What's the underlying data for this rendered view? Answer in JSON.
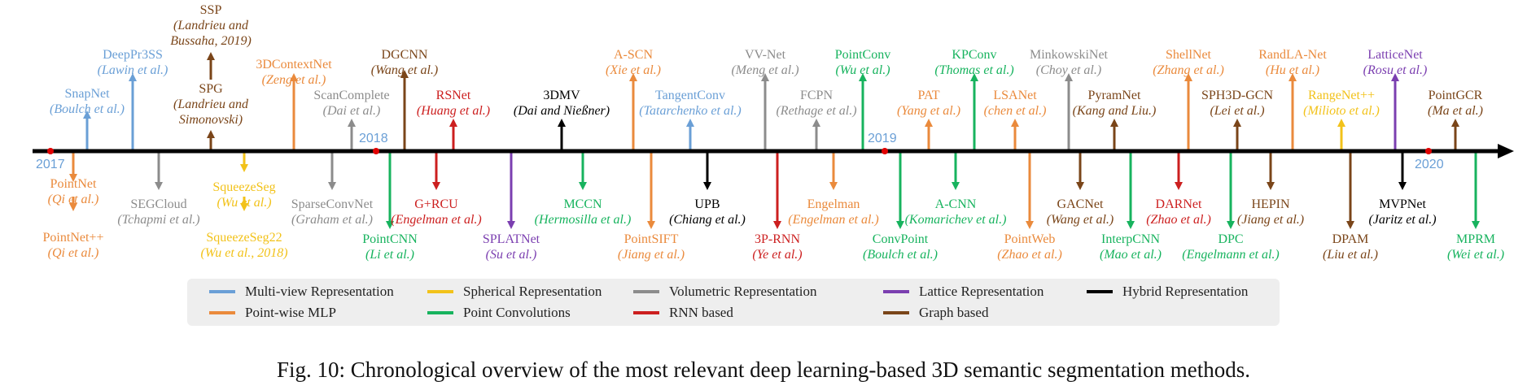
{
  "caption": "Fig. 10: Chronological overview of the most relevant deep learning-based 3D semantic segmentation methods.",
  "colors": {
    "multiview": "#6a9fd6",
    "spherical": "#f2c21a",
    "volumetric": "#8c8c8c",
    "lattice": "#7b3fb0",
    "hybrid": "#000000",
    "pointwise": "#ea8a3c",
    "pointconv": "#17b35e",
    "rnn": "#cc1f1f",
    "graph": "#7a4519",
    "axis": "#000000",
    "marker": "#e00000"
  },
  "years": [
    "2017",
    "2018",
    "2019",
    "2020"
  ],
  "legend": [
    {
      "cat": "multiview",
      "label": "Multi-view Representation"
    },
    {
      "cat": "spherical",
      "label": "Spherical Representation"
    },
    {
      "cat": "volumetric",
      "label": "Volumetric Representation"
    },
    {
      "cat": "lattice",
      "label": "Lattice Representation"
    },
    {
      "cat": "hybrid",
      "label": "Hybrid Representation"
    },
    {
      "cat": "pointwise",
      "label": "Point-wise MLP"
    },
    {
      "cat": "pointconv",
      "label": "Point Convolutions"
    },
    {
      "cat": "rnn",
      "label": "RNN based"
    },
    {
      "cat": "graph",
      "label": "Graph based"
    }
  ],
  "methods": [
    {
      "name": "SnapNet",
      "authors": "(Boulch et al.)",
      "cat": "multiview"
    },
    {
      "name": "DeepPr3SS",
      "authors": "(Lawin et al.)",
      "cat": "multiview"
    },
    {
      "name": "SPG",
      "authors": "(Landrieu and Simonovski)",
      "cat": "graph"
    },
    {
      "name": "SSP",
      "authors": "(Landrieu and Bussaha, 2019)",
      "cat": "graph"
    },
    {
      "name": "3DContextNet",
      "authors": "(Zeng et al.)",
      "cat": "pointwise"
    },
    {
      "name": "ScanComplete",
      "authors": "(Dai et al.)",
      "cat": "volumetric"
    },
    {
      "name": "DGCNN",
      "authors": "(Wang et al.)",
      "cat": "graph"
    },
    {
      "name": "RSNet",
      "authors": "(Huang et al.)",
      "cat": "rnn"
    },
    {
      "name": "3DMV",
      "authors": "(Dai and Nießner)",
      "cat": "hybrid"
    },
    {
      "name": "A-SCN",
      "authors": "(Xie et al.)",
      "cat": "pointwise"
    },
    {
      "name": "TangentConv",
      "authors": "(Tatarchenko et al.)",
      "cat": "multiview"
    },
    {
      "name": "VV-Net",
      "authors": "(Meng et al.)",
      "cat": "volumetric"
    },
    {
      "name": "FCPN",
      "authors": "(Rethage et al.)",
      "cat": "volumetric"
    },
    {
      "name": "PointConv",
      "authors": "(Wu et al.)",
      "cat": "pointconv"
    },
    {
      "name": "PAT",
      "authors": "(Yang et al.)",
      "cat": "pointwise"
    },
    {
      "name": "KPConv",
      "authors": "(Thomas et al.)",
      "cat": "pointconv"
    },
    {
      "name": "LSANet",
      "authors": "(chen et al.)",
      "cat": "pointwise"
    },
    {
      "name": "MinkowskiNet",
      "authors": "(Choy et al.)",
      "cat": "volumetric"
    },
    {
      "name": "PyramNet",
      "authors": "(Kang and Liu.)",
      "cat": "graph"
    },
    {
      "name": "ShellNet",
      "authors": "(Zhang et al.)",
      "cat": "pointwise"
    },
    {
      "name": "SPH3D-GCN",
      "authors": "(Lei et al.)",
      "cat": "graph"
    },
    {
      "name": "RandLA-Net",
      "authors": "(Hu et al.)",
      "cat": "pointwise"
    },
    {
      "name": "RangeNet++",
      "authors": "(Milioto et al.)",
      "cat": "spherical"
    },
    {
      "name": "LatticeNet",
      "authors": "(Rosu et al.)",
      "cat": "lattice"
    },
    {
      "name": "PointGCR",
      "authors": "(Ma et al.)",
      "cat": "graph"
    },
    {
      "name": "PointNet",
      "authors": "(Qi et al.)",
      "cat": "pointwise"
    },
    {
      "name": "PointNet++",
      "authors": "(Qi et al.)",
      "cat": "pointwise"
    },
    {
      "name": "SEGCloud",
      "authors": "(Tchapmi et al.)",
      "cat": "volumetric"
    },
    {
      "name": "SqueezeSeg",
      "authors": "(Wu et al.)",
      "cat": "spherical"
    },
    {
      "name": "SqueezeSeg22",
      "authors": "(Wu et al., 2018)",
      "cat": "spherical"
    },
    {
      "name": "SparseConvNet",
      "authors": "(Graham et al.)",
      "cat": "volumetric"
    },
    {
      "name": "PointCNN",
      "authors": "(Li et al.)",
      "cat": "pointconv"
    },
    {
      "name": "G+RCU",
      "authors": "(Engelman et al.)",
      "cat": "rnn"
    },
    {
      "name": "SPLATNet",
      "authors": "(Su et al.)",
      "cat": "lattice"
    },
    {
      "name": "MCCN",
      "authors": "(Hermosilla et al.)",
      "cat": "pointconv"
    },
    {
      "name": "PointSIFT",
      "authors": "(Jiang et al.)",
      "cat": "pointwise"
    },
    {
      "name": "UPB",
      "authors": "(Chiang et al.)",
      "cat": "hybrid"
    },
    {
      "name": "3P-RNN",
      "authors": "(Ye et al.)",
      "cat": "rnn"
    },
    {
      "name": "Engelman",
      "authors": "(Engelman et al.)",
      "cat": "pointwise"
    },
    {
      "name": "ConvPoint",
      "authors": "(Boulch et al.)",
      "cat": "pointconv"
    },
    {
      "name": "A-CNN",
      "authors": "(Komarichev et al.)",
      "cat": "pointconv"
    },
    {
      "name": "PointWeb",
      "authors": "(Zhao et al.)",
      "cat": "pointwise"
    },
    {
      "name": "GACNet",
      "authors": "(Wang et al.)",
      "cat": "graph"
    },
    {
      "name": "InterpCNN",
      "authors": "(Mao et al.)",
      "cat": "pointconv"
    },
    {
      "name": "DARNet",
      "authors": "(Zhao et al.)",
      "cat": "rnn"
    },
    {
      "name": "DPC",
      "authors": "(Engelmann et al.)",
      "cat": "pointconv"
    },
    {
      "name": "HEPIN",
      "authors": "(Jiang et al.)",
      "cat": "graph"
    },
    {
      "name": "DPAM",
      "authors": "(Liu et al.)",
      "cat": "graph"
    },
    {
      "name": "MVPNet",
      "authors": "(Jaritz et al.)",
      "cat": "hybrid"
    },
    {
      "name": "MPRM",
      "authors": "(Wei et al.)",
      "cat": "pointconv"
    }
  ]
}
